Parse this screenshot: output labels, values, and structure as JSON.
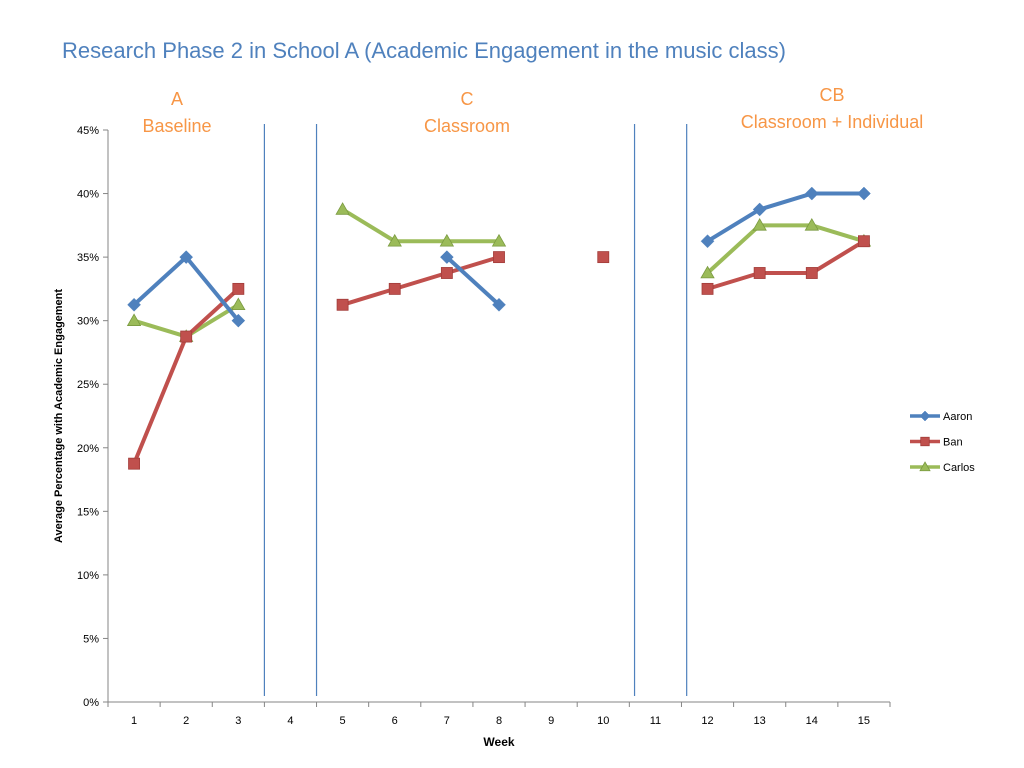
{
  "slide": {
    "title": "Research Phase 2 in School A (Academic Engagement in the music class)"
  },
  "phases": [
    {
      "code": "A",
      "name": "Baseline"
    },
    {
      "code": "C",
      "name": "Classroom"
    },
    {
      "code": "CB",
      "name": "Classroom + Individual"
    }
  ],
  "chart_data": {
    "type": "line",
    "title": "",
    "xlabel": "Week",
    "ylabel": "Average Percentage with Academic Engagement",
    "x": [
      1,
      2,
      3,
      4,
      5,
      6,
      7,
      8,
      9,
      10,
      11,
      12,
      13,
      14,
      15
    ],
    "xlim": [
      0.5,
      15.5
    ],
    "ylim": [
      0,
      45
    ],
    "y_ticks": [
      "0%",
      "5%",
      "10%",
      "15%",
      "20%",
      "25%",
      "30%",
      "35%",
      "40%",
      "45%"
    ],
    "grid": false,
    "legend_position": "right",
    "phase_boundaries": [
      3.5,
      4.5,
      10.6,
      11.6
    ],
    "series": [
      {
        "name": "Aaron",
        "color": "#4f81bd",
        "marker": "diamond",
        "values": [
          31.25,
          35,
          30,
          null,
          null,
          null,
          35,
          31.25,
          null,
          null,
          null,
          36.25,
          38.75,
          40,
          40
        ]
      },
      {
        "name": "Ban",
        "color": "#c0504d",
        "marker": "square",
        "values": [
          18.75,
          28.75,
          32.5,
          null,
          31.25,
          32.5,
          33.75,
          35,
          null,
          35,
          null,
          32.5,
          33.75,
          33.75,
          36.25
        ]
      },
      {
        "name": "Carlos",
        "color": "#9bbb59",
        "marker": "triangle",
        "values": [
          30,
          28.75,
          31.25,
          null,
          38.75,
          36.25,
          36.25,
          36.25,
          null,
          null,
          null,
          33.75,
          37.5,
          37.5,
          36.25
        ]
      }
    ]
  }
}
